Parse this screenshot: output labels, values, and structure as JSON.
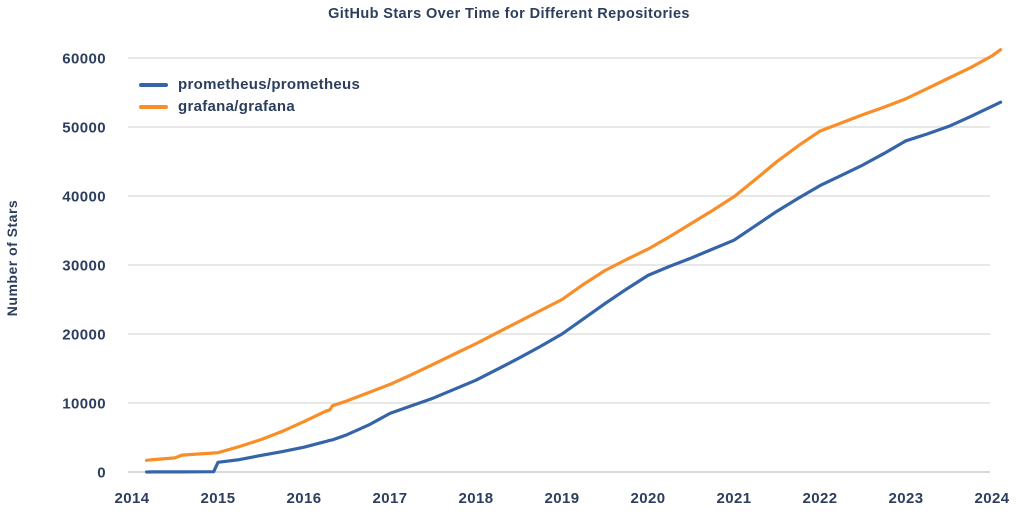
{
  "style": {
    "background": "#ffffff",
    "text_color": "#2c3e5d",
    "grid_color": "#d9d9d9",
    "zero_line_color": "#c2c2c2"
  },
  "chart_data": {
    "type": "line",
    "title": "GitHub Stars Over Time for Different Repositories",
    "xlabel": "",
    "ylabel": "Number of Stars",
    "xticks": [
      2014,
      2015,
      2016,
      2017,
      2018,
      2019,
      2020,
      2021,
      2022,
      2023,
      2024
    ],
    "yticks": [
      0,
      10000,
      20000,
      30000,
      40000,
      50000,
      60000
    ],
    "xlim": [
      2013.95,
      2024.2
    ],
    "ylim": [
      0,
      63000
    ],
    "grid": "horizontal",
    "legend_position": "top-left",
    "x": [
      2014.17,
      2014.25,
      2014.5,
      2014.58,
      2014.75,
      2014.95,
      2015.0,
      2015.25,
      2015.5,
      2015.75,
      2016.0,
      2016.25,
      2016.3,
      2016.33,
      2016.5,
      2016.75,
      2017.0,
      2017.25,
      2017.5,
      2017.75,
      2018.0,
      2018.25,
      2018.5,
      2018.75,
      2019.0,
      2019.25,
      2019.5,
      2019.75,
      2020.0,
      2020.25,
      2020.5,
      2020.75,
      2021.0,
      2021.25,
      2021.5,
      2021.75,
      2022.0,
      2022.25,
      2022.5,
      2022.75,
      2023.0,
      2023.25,
      2023.5,
      2023.75,
      2024.0,
      2024.1
    ],
    "series": [
      {
        "name": "prometheus/prometheus",
        "color": "#3565a8",
        "values": [
          0,
          10,
          15,
          20,
          25,
          40,
          1400,
          1800,
          2400,
          2950,
          3600,
          4400,
          4600,
          4650,
          5400,
          6800,
          8500,
          9600,
          10700,
          12000,
          13300,
          14900,
          16500,
          18200,
          20000,
          22200,
          24400,
          26500,
          28500,
          29800,
          31000,
          32300,
          33600,
          35700,
          37800,
          39700,
          41500,
          43000,
          44500,
          46200,
          48000,
          49000,
          50100,
          51500,
          53000,
          53600
        ]
      },
      {
        "name": "grafana/grafana",
        "color": "#f98e28",
        "values": [
          1700,
          1800,
          2050,
          2450,
          2600,
          2750,
          2800,
          3700,
          4700,
          5900,
          7300,
          8800,
          9000,
          9600,
          10300,
          11500,
          12700,
          14100,
          15600,
          17100,
          18600,
          20200,
          21800,
          23400,
          25000,
          27200,
          29200,
          30800,
          32300,
          34100,
          36000,
          37900,
          39900,
          42400,
          45000,
          47300,
          49400,
          50600,
          51800,
          52900,
          54100,
          55600,
          57100,
          58600,
          60300,
          61200
        ]
      }
    ]
  }
}
